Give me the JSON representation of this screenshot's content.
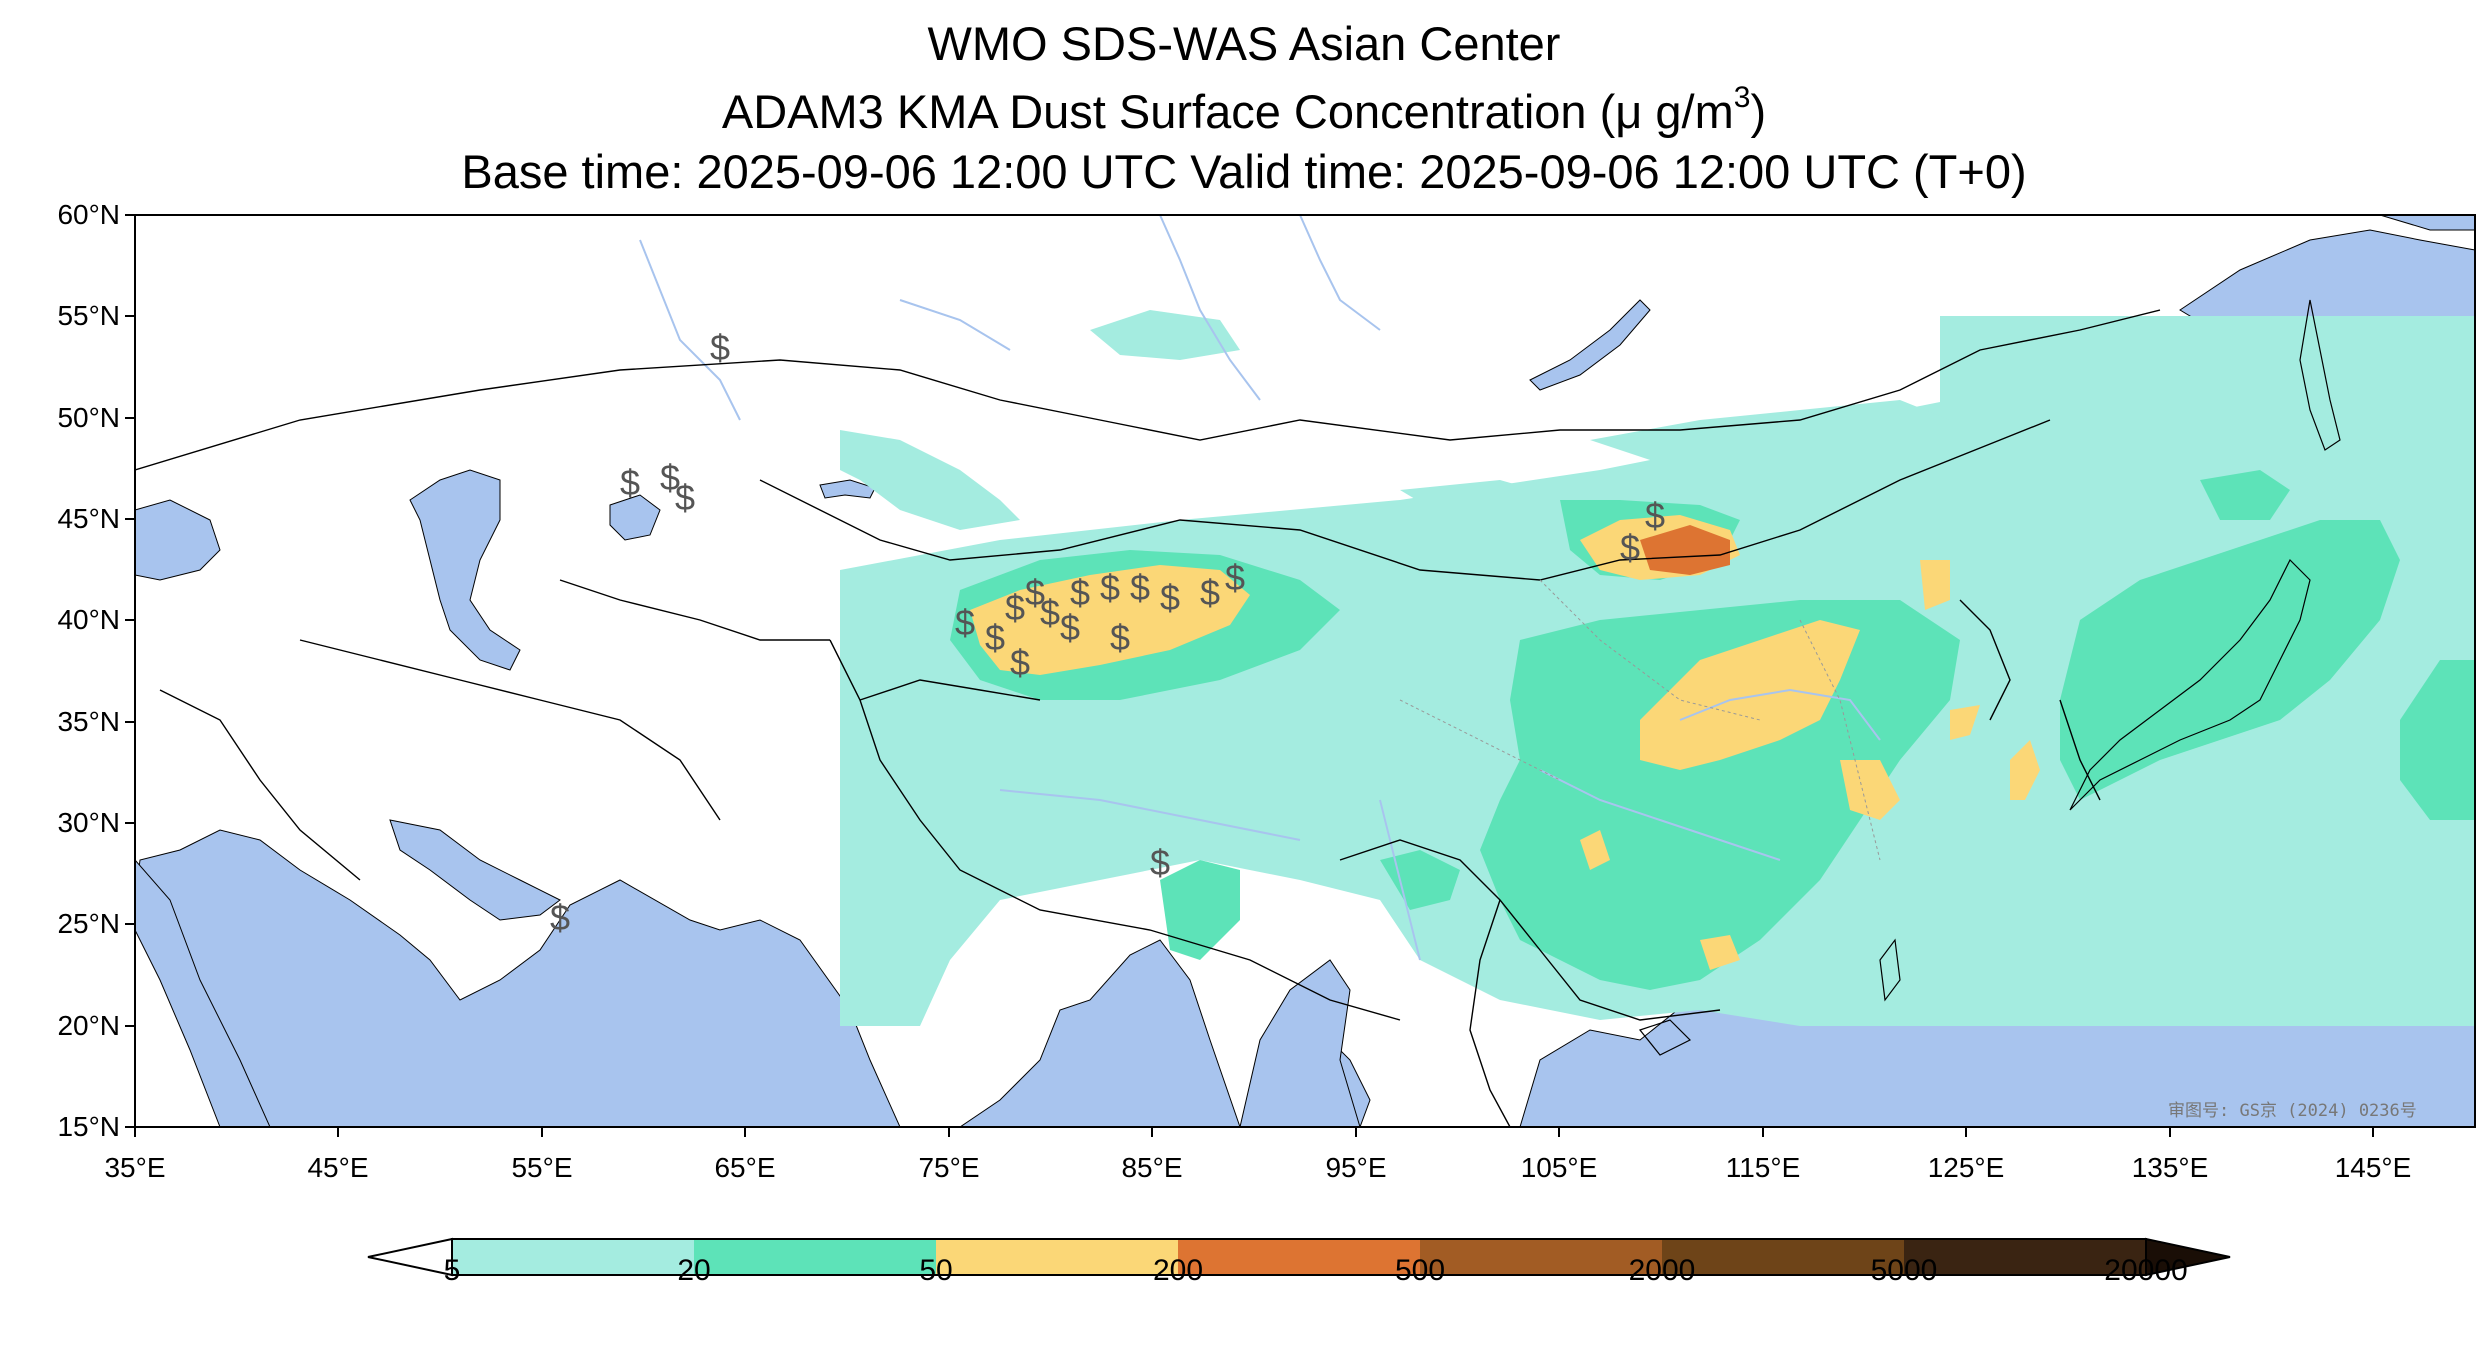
{
  "title": {
    "line1": "WMO SDS-WAS Asian Center",
    "line2_prefix": "ADAM3 KMA Dust Surface Concentration (μ g/m",
    "line2_sup": "3",
    "line2_suffix": ")",
    "line3": "Base time: 2025-09-06 12:00 UTC Valid time: 2025-09-06 12:00 UTC (T+0)"
  },
  "map": {
    "extent": {
      "lon_min": 35,
      "lon_max": 150,
      "lat_min": 15,
      "lat_max": 60
    },
    "lat_ticks": [
      "60°N",
      "55°N",
      "50°N",
      "45°N",
      "40°N",
      "35°N",
      "30°N",
      "25°N",
      "20°N",
      "15°N"
    ],
    "lon_ticks": [
      "35°E",
      "45°E",
      "55°E",
      "65°E",
      "75°E",
      "85°E",
      "95°E",
      "105°E",
      "115°E",
      "125°E",
      "135°E",
      "145°E"
    ],
    "stamp": "审图号: GS京 (2024) 0236号",
    "colors": {
      "water": "#a8c4ee",
      "river": "#a8c4ee",
      "border": "#000000"
    }
  },
  "colorbar": {
    "levels": [
      "5",
      "20",
      "50",
      "200",
      "500",
      "2000",
      "5000",
      "20000"
    ],
    "colors": [
      "#a4ece0",
      "#5de3b8",
      "#fbd777",
      "#dd7432",
      "#a25c24",
      "#6e4418",
      "#3a2412"
    ],
    "extend": "both"
  }
}
